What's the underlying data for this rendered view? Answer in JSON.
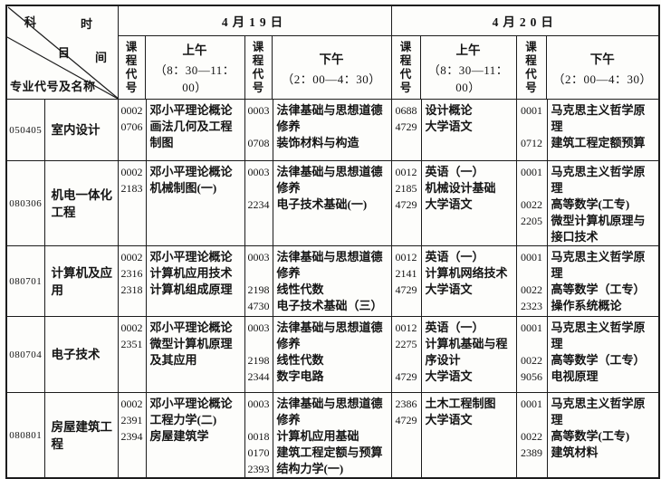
{
  "header": {
    "corner": {
      "subject_char1": "科",
      "time_char1": "时",
      "subject_char2": "目",
      "time_char2": "间",
      "label": "专业代号及名称"
    },
    "dates": [
      "4月19日",
      "4月20日"
    ],
    "course_code_label": "课程代号",
    "am": {
      "label": "上午",
      "time": "（8：30—11：00）"
    },
    "pm": {
      "label": "下午",
      "time": "（2：00—4：30）"
    }
  },
  "rows": [
    {
      "major_code": "050405",
      "major_name": "室内设计",
      "d19_am": [
        {
          "code": "0002",
          "name": "邓小平理论概论"
        },
        {
          "code": "0706",
          "name": "画法几何及工程制图"
        }
      ],
      "d19_pm": [
        {
          "code": "0003",
          "name": "法律基础与思想道德修养"
        },
        {
          "code": "0708",
          "name": "装饰材料与构造"
        }
      ],
      "d20_am": [
        {
          "code": "0688",
          "name": "设计概论"
        },
        {
          "code": "4729",
          "name": "大学语文"
        }
      ],
      "d20_pm": [
        {
          "code": "0001",
          "name": "马克思主义哲学原理"
        },
        {
          "code": "0712",
          "name": "建筑工程定额预算"
        }
      ]
    },
    {
      "major_code": "080306",
      "major_name": "机电一体化工程",
      "d19_am": [
        {
          "code": "0002",
          "name": "邓小平理论概论"
        },
        {
          "code": "2183",
          "name": "机械制图(一)"
        }
      ],
      "d19_pm": [
        {
          "code": "0003",
          "name": "法律基础与思想道德修养"
        },
        {
          "code": "2234",
          "name": "电子技术基础(一)"
        }
      ],
      "d20_am": [
        {
          "code": "0012",
          "name": "英语（一）"
        },
        {
          "code": "2185",
          "name": "机械设计基础"
        },
        {
          "code": "4729",
          "name": "大学语文"
        }
      ],
      "d20_pm": [
        {
          "code": "0001",
          "name": "马克思主义哲学原理"
        },
        {
          "code": "0022",
          "name": "高等数学(工专)"
        },
        {
          "code": "2205",
          "name": "微型计算机原理与接口技术"
        }
      ]
    },
    {
      "major_code": "080701",
      "major_name": "计算机及应用",
      "d19_am": [
        {
          "code": "0002",
          "name": "邓小平理论概论"
        },
        {
          "code": "2316",
          "name": "计算机应用技术"
        },
        {
          "code": "2318",
          "name": "计算机组成原理"
        }
      ],
      "d19_pm": [
        {
          "code": "0003",
          "name": "法律基础与思想道德修养"
        },
        {
          "code": "2198",
          "name": "线性代数"
        },
        {
          "code": "4730",
          "name": "电子技术基础（三）"
        }
      ],
      "d20_am": [
        {
          "code": "0012",
          "name": "英语（一）"
        },
        {
          "code": "2141",
          "name": "计算机网络技术"
        },
        {
          "code": "4729",
          "name": "大学语文"
        }
      ],
      "d20_pm": [
        {
          "code": "0001",
          "name": "马克思主义哲学原理"
        },
        {
          "code": "0022",
          "name": "高等数学（工专）"
        },
        {
          "code": "2323",
          "name": "操作系统概论"
        }
      ]
    },
    {
      "major_code": "080704",
      "major_name": "电子技术",
      "d19_am": [
        {
          "code": "0002",
          "name": "邓小平理论概论"
        },
        {
          "code": "2351",
          "name": "微型计算机原理及其应用"
        }
      ],
      "d19_pm": [
        {
          "code": "0003",
          "name": "法律基础与思想道德修养"
        },
        {
          "code": "2198",
          "name": "线性代数"
        },
        {
          "code": "2344",
          "name": "数字电路"
        }
      ],
      "d20_am": [
        {
          "code": "0012",
          "name": "英语（一）"
        },
        {
          "code": "2275",
          "name": "计算机基础与程序设计"
        },
        {
          "code": "4729",
          "name": "大学语文"
        }
      ],
      "d20_pm": [
        {
          "code": "0001",
          "name": "马克思主义哲学原理"
        },
        {
          "code": "0022",
          "name": "高等数学（工专）"
        },
        {
          "code": "9056",
          "name": "电视原理"
        }
      ]
    },
    {
      "major_code": "080801",
      "major_name": "房屋建筑工程",
      "d19_am": [
        {
          "code": "0002",
          "name": "邓小平理论概论"
        },
        {
          "code": "2391",
          "name": "工程力学(二)"
        },
        {
          "code": "2394",
          "name": "房屋建筑学"
        }
      ],
      "d19_pm": [
        {
          "code": "0003",
          "name": "法律基础与思想道德修养"
        },
        {
          "code": "0018",
          "name": "计算机应用基础"
        },
        {
          "code": "0170",
          "name": "建筑工程定额与预算"
        },
        {
          "code": "2393",
          "name": "结构力学(一)"
        }
      ],
      "d20_am": [
        {
          "code": "2386",
          "name": "土木工程制图"
        },
        {
          "code": "4729",
          "name": "大学语文"
        }
      ],
      "d20_pm": [
        {
          "code": "0001",
          "name": "马克思主义哲学原理"
        },
        {
          "code": "0022",
          "name": "高等数学(工专)"
        },
        {
          "code": "2389",
          "name": "建筑材料"
        }
      ]
    }
  ]
}
